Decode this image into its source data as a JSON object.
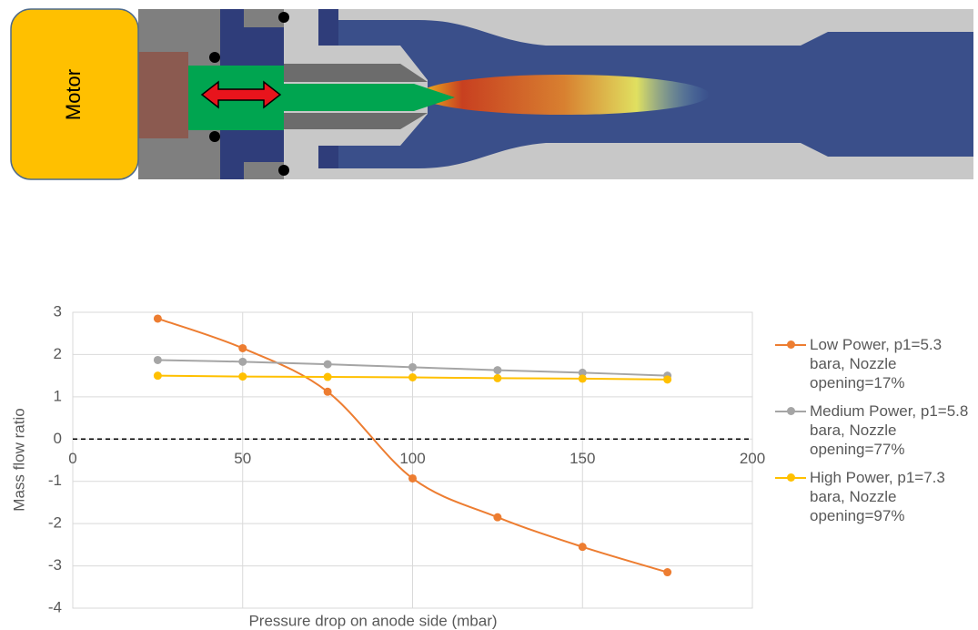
{
  "diagram": {
    "label": "Motor"
  },
  "chart_data": {
    "type": "line",
    "xlabel": "Pressure drop on anode side (mbar)",
    "ylabel": "Mass flow ratio",
    "xlim": [
      0,
      200
    ],
    "xticks": [
      0,
      50,
      100,
      150,
      200
    ],
    "ylim": [
      -4,
      3
    ],
    "yticks": [
      -4,
      -3,
      -2,
      -1,
      0,
      1,
      2,
      3
    ],
    "grid": true,
    "smooth": true,
    "zero_line": "dashed",
    "legend": "right",
    "x": [
      25,
      50,
      75,
      100,
      125,
      150,
      175
    ],
    "series": [
      {
        "name": "Low Power, p1=5.3 bara, Nozzle opening=17%",
        "color": "#ed7d31",
        "values": [
          2.85,
          2.15,
          1.12,
          -0.93,
          -1.85,
          -2.55,
          -3.15
        ]
      },
      {
        "name": "Medium Power, p1=5.8 bara, Nozzle opening=77%",
        "color": "#a5a5a5",
        "values": [
          1.87,
          1.83,
          1.77,
          1.7,
          1.63,
          1.57,
          1.5
        ]
      },
      {
        "name": "High Power, p1=7.3 bara, Nozzle opening=97%",
        "color": "#ffc000",
        "values": [
          1.5,
          1.48,
          1.47,
          1.46,
          1.44,
          1.43,
          1.41
        ]
      }
    ]
  }
}
